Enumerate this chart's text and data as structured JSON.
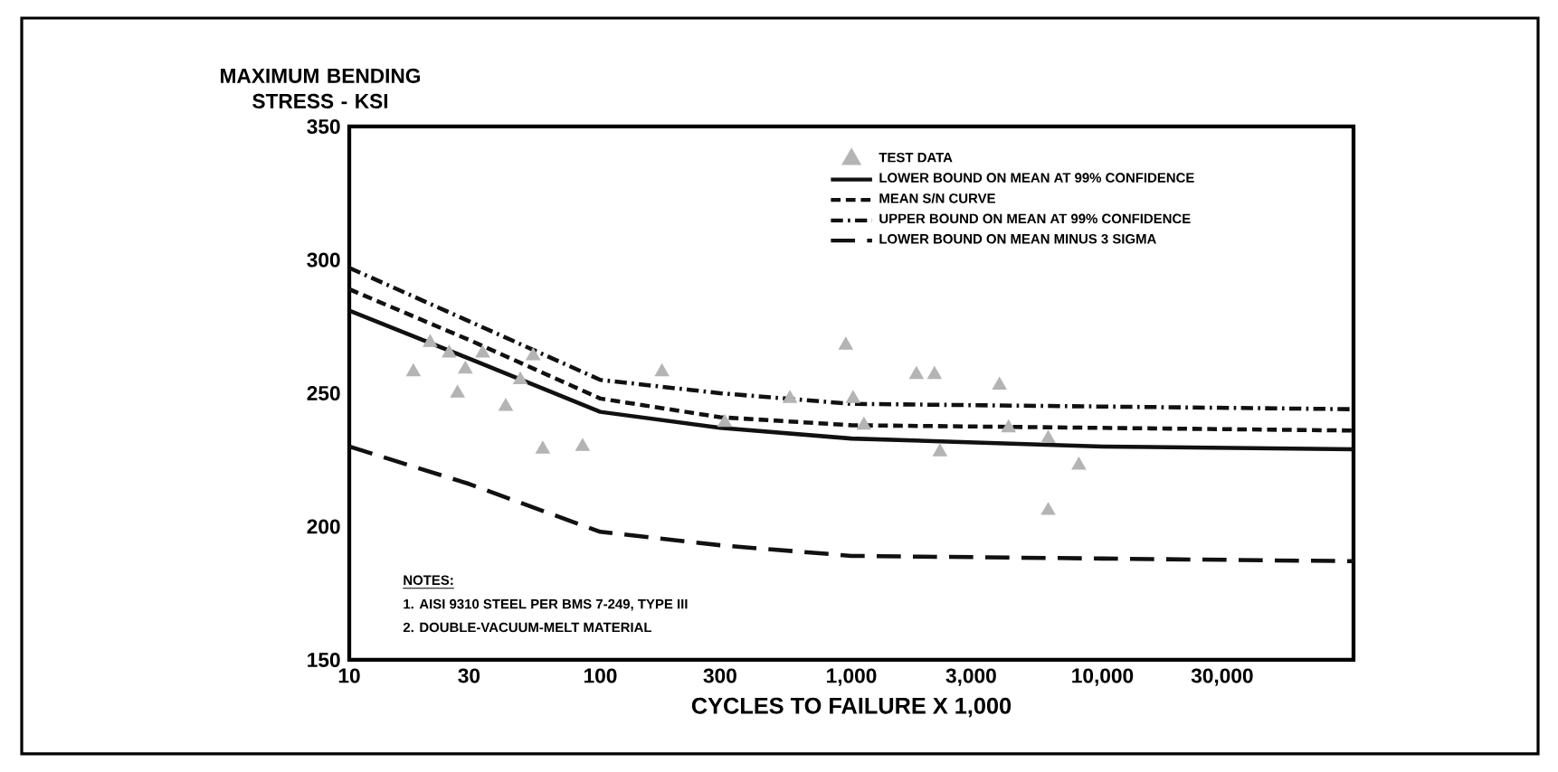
{
  "chart_data": {
    "type": "line",
    "xlabel": "CYCLES TO FAILURE X 1,000",
    "ylabel": "MAXIMUM BENDING STRESS - KSI",
    "log": "x",
    "xlim": [
      10,
      100000
    ],
    "xticks": [
      10,
      30,
      100,
      300,
      {
        "value": 1000,
        "label": "1,000"
      },
      {
        "value": 3000,
        "label": "3,000"
      },
      {
        "value": 10000,
        "label": "10,000"
      },
      {
        "value": 30000,
        "label": "30,000"
      }
    ],
    "ylim": [
      150,
      350
    ],
    "yticks": [
      150,
      200,
      250,
      300,
      350
    ],
    "grid": false,
    "legend": "top right",
    "series": [
      {
        "name": "TEST DATA",
        "type": "scatter",
        "marker": "triangle",
        "color": "#b4b4b4",
        "x": [
          18,
          21,
          25,
          27,
          29,
          34,
          42,
          48,
          54,
          59,
          85,
          176,
          313,
          569,
          950,
          1016,
          1122,
          1816,
          2143,
          2253,
          3890,
          4227,
          6081,
          6081,
          8054
        ],
        "values": [
          258,
          269,
          265,
          250,
          259,
          265,
          245,
          255,
          264,
          229,
          230,
          258,
          239,
          248,
          268,
          248,
          238,
          257,
          257,
          228,
          253,
          237,
          233,
          206,
          223
        ]
      },
      {
        "name": "LOWER BOUND ON MEAN AT 99% CONFIDENCE",
        "line_style": "solid",
        "color": "#111111",
        "x": [
          10,
          30,
          100,
          300,
          1000,
          10000,
          100000
        ],
        "values": [
          281,
          263,
          243,
          237,
          233,
          230,
          229
        ]
      },
      {
        "name": "MEAN S/N CURVE",
        "line_style": "dashed",
        "color": "#111111",
        "x": [
          10,
          30,
          100,
          300,
          1000,
          10000,
          100000
        ],
        "values": [
          289,
          270,
          248,
          241,
          238,
          237,
          236
        ]
      },
      {
        "name": "UPPER BOUND ON MEAN AT 99% CONFIDENCE",
        "line_style": "dashdot",
        "color": "#111111",
        "x": [
          10,
          30,
          100,
          300,
          1000,
          10000,
          100000
        ],
        "values": [
          297,
          277,
          255,
          250,
          246,
          245,
          244
        ]
      },
      {
        "name": "LOWER BOUND ON MEAN MINUS 3 SIGMA",
        "line_style": "long dashed",
        "color": "#111111",
        "x": [
          10,
          30,
          100,
          300,
          1000,
          10000,
          100000
        ],
        "values": [
          230,
          216,
          198,
          193,
          189,
          188,
          187
        ]
      }
    ],
    "annotations": [
      "NOTES:",
      "1. AISI 9310 STEEL PER BMS 7-249, TYPE III",
      "2. DOUBLE-VACUUM-MELT MATERIAL"
    ]
  }
}
